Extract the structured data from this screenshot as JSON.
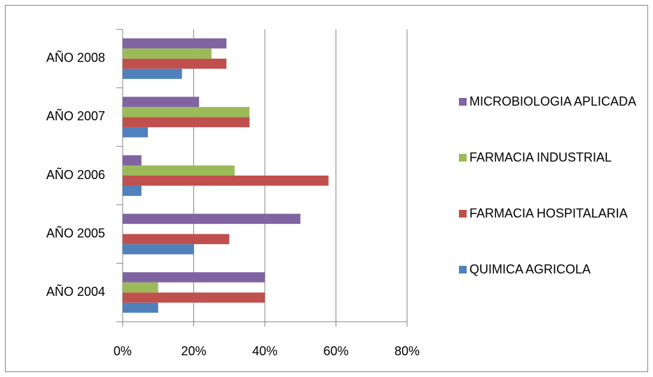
{
  "chart_data": {
    "type": "barh",
    "categories": [
      "AÑO 2004",
      "AÑO 2005",
      "AÑO 2006",
      "AÑO 2007",
      "AÑO 2008"
    ],
    "series": [
      {
        "name": "QUIMICA AGRICOLA",
        "color": "#4f81bd",
        "values": [
          10,
          20,
          5.3,
          7.1,
          16.7
        ]
      },
      {
        "name": "FARMACIA HOSPITALARIA",
        "color": "#c0504d",
        "values": [
          40,
          30,
          57.9,
          35.7,
          29.2
        ]
      },
      {
        "name": "FARMACIA INDUSTRIAL",
        "color": "#9bbb59",
        "values": [
          10,
          0,
          31.5,
          35.7,
          25
        ]
      },
      {
        "name": "MICROBIOLOGIA APLICADA",
        "color": "#8064a2",
        "values": [
          40,
          50,
          5.3,
          21.5,
          29.2
        ]
      }
    ],
    "xlim": [
      0,
      80
    ],
    "xticks": [
      {
        "value": 0,
        "label": "0%"
      },
      {
        "value": 20,
        "label": "20%"
      },
      {
        "value": 40,
        "label": "40%"
      },
      {
        "value": 60,
        "label": "60%"
      },
      {
        "value": 80,
        "label": "80%"
      }
    ],
    "grid": true,
    "legend": "right"
  }
}
